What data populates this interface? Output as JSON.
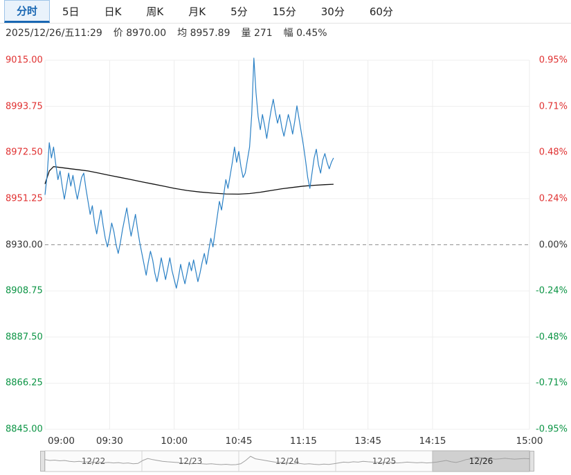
{
  "tabs": {
    "items": [
      {
        "label": "分时",
        "active": true
      },
      {
        "label": "5日",
        "active": false
      },
      {
        "label": "日K",
        "active": false
      },
      {
        "label": "周K",
        "active": false
      },
      {
        "label": "月K",
        "active": false
      },
      {
        "label": "5分",
        "active": false
      },
      {
        "label": "15分",
        "active": false
      },
      {
        "label": "30分",
        "active": false
      },
      {
        "label": "60分",
        "active": false
      }
    ]
  },
  "info_bar": {
    "datetime": "2025/12/26/五11:29",
    "fields": [
      {
        "label": "价",
        "value": "8970.00"
      },
      {
        "label": "均",
        "value": "8957.89"
      },
      {
        "label": "量",
        "value": "271"
      },
      {
        "label": "幅",
        "value": "0.45%"
      }
    ]
  },
  "colors": {
    "up": "#e03131",
    "down": "#0b9444",
    "neutral": "#333333",
    "price_line": "#2a80c5",
    "avg_line": "#111111",
    "grid_h": "#efefef",
    "grid_v": "#ececec",
    "zero_dash": "#8f8f8f",
    "tab_active": "#1967b3",
    "nav_spark": "#a0a0a0",
    "nav_overlay": "#9e9e9e"
  },
  "chart_data": {
    "type": "line",
    "title": "分时走势图 (intraday time-share chart)",
    "prev_close": 8930.0,
    "current_price": 8970.0,
    "average_price": 8957.89,
    "volume": 271,
    "change_pct": "0.45%",
    "ylim": [
      8845,
      9015
    ],
    "y_axis_left": [
      "9015.00",
      "8993.75",
      "8972.50",
      "8951.25",
      "8930.00",
      "8908.75",
      "8887.50",
      "8866.25",
      "8845.00"
    ],
    "y_axis_right": [
      "0.95%",
      "0.71%",
      "0.48%",
      "0.24%",
      "0.00%",
      "-0.24%",
      "-0.48%",
      "-0.71%",
      "-0.95%"
    ],
    "total_minutes": 225,
    "x_labels": [
      {
        "label": "09:00",
        "minute": 0
      },
      {
        "label": "09:30",
        "minute": 30
      },
      {
        "label": "10:00",
        "minute": 60
      },
      {
        "label": "10:45",
        "minute": 90
      },
      {
        "label": "11:15",
        "minute": 120
      },
      {
        "label": "13:45",
        "minute": 150
      },
      {
        "label": "14:15",
        "minute": 180
      },
      {
        "label": "15:00",
        "minute": 225
      }
    ],
    "series": [
      {
        "name": "price",
        "kind": "minute_values",
        "values": [
          8953,
          8962,
          8977,
          8970,
          8975,
          8967,
          8960,
          8964,
          8957,
          8951,
          8957,
          8963,
          8957,
          8962,
          8956,
          8951,
          8956,
          8961,
          8963,
          8956,
          8950,
          8944,
          8948,
          8940,
          8935,
          8941,
          8946,
          8939,
          8933,
          8929,
          8934,
          8940,
          8936,
          8930,
          8926,
          8931,
          8937,
          8942,
          8947,
          8940,
          8934,
          8939,
          8944,
          8937,
          8931,
          8926,
          8921,
          8916,
          8922,
          8927,
          8923,
          8917,
          8913,
          8918,
          8924,
          8919,
          8914,
          8919,
          8924,
          8918,
          8914,
          8910,
          8915,
          8921,
          8916,
          8912,
          8917,
          8922,
          8918,
          8923,
          8918,
          8913,
          8917,
          8922,
          8926,
          8921,
          8927,
          8933,
          8929,
          8936,
          8943,
          8950,
          8946,
          8953,
          8960,
          8956,
          8962,
          8968,
          8975,
          8968,
          8973,
          8966,
          8961,
          8963,
          8969,
          8975,
          8990,
          9016,
          9000,
          8989,
          8983,
          8990,
          8985,
          8979,
          8986,
          8992,
          8997,
          8991,
          8986,
          8990,
          8984,
          8980,
          8985,
          8990,
          8986,
          8981,
          8987,
          8994,
          8988,
          8982,
          8976,
          8969,
          8961,
          8956,
          8963,
          8970,
          8974,
          8967,
          8963,
          8969,
          8972,
          8968,
          8965,
          8968,
          8970
        ]
      },
      {
        "name": "average",
        "kind": "keypoints",
        "points": [
          [
            0,
            8958
          ],
          [
            2,
            8964
          ],
          [
            4,
            8966
          ],
          [
            8,
            8965.5
          ],
          [
            12,
            8965
          ],
          [
            16,
            8964.5
          ],
          [
            20,
            8964
          ],
          [
            25,
            8963
          ],
          [
            30,
            8962
          ],
          [
            35,
            8961
          ],
          [
            40,
            8960
          ],
          [
            45,
            8959
          ],
          [
            50,
            8958
          ],
          [
            55,
            8957
          ],
          [
            60,
            8956
          ],
          [
            66,
            8955
          ],
          [
            72,
            8954.3
          ],
          [
            78,
            8953.8
          ],
          [
            84,
            8953.4
          ],
          [
            90,
            8953.3
          ],
          [
            95,
            8953.6
          ],
          [
            100,
            8954.2
          ],
          [
            105,
            8955
          ],
          [
            110,
            8955.8
          ],
          [
            115,
            8956.4
          ],
          [
            120,
            8957
          ],
          [
            125,
            8957.4
          ],
          [
            130,
            8957.7
          ],
          [
            134,
            8957.89
          ]
        ]
      }
    ]
  },
  "navigator": {
    "days": [
      "12/22",
      "12/23",
      "12/24",
      "12/25",
      "12/26"
    ],
    "selected": "12/26",
    "spark": [
      0.55,
      0.5,
      0.52,
      0.48,
      0.5,
      0.45,
      0.42,
      0.45,
      0.4,
      0.42,
      0.38,
      0.4,
      0.36,
      0.38,
      0.35,
      0.37,
      0.33,
      0.35,
      0.3,
      0.32,
      0.5,
      0.62,
      0.55,
      0.5,
      0.45,
      0.42,
      0.4,
      0.38,
      0.35,
      0.33,
      0.3,
      0.32,
      0.3,
      0.28,
      0.3,
      0.27,
      0.25,
      0.27,
      0.24,
      0.25,
      0.3,
      0.5,
      0.75,
      0.6,
      0.55,
      0.5,
      0.45,
      0.4,
      0.38,
      0.35,
      0.33,
      0.3,
      0.32,
      0.28,
      0.3,
      0.27,
      0.25,
      0.28,
      0.26,
      0.3,
      0.35,
      0.4,
      0.38,
      0.42,
      0.4,
      0.45,
      0.42,
      0.4,
      0.38,
      0.36,
      0.4,
      0.38,
      0.35,
      0.37,
      0.4,
      0.38,
      0.36,
      0.38,
      0.35,
      0.37,
      0.4,
      0.45,
      0.5,
      0.42,
      0.38,
      0.45,
      0.55,
      0.6,
      0.7,
      0.65,
      0.6,
      0.62,
      0.58,
      0.6,
      0.63,
      0.6,
      0.58,
      0.6,
      0.62,
      0.6
    ]
  }
}
